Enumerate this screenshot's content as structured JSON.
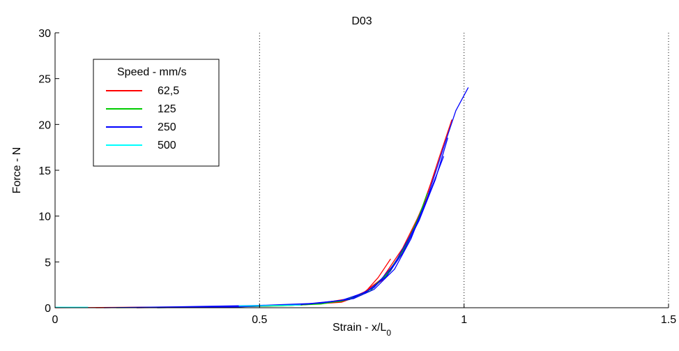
{
  "chart_data": {
    "type": "line",
    "title": "D03",
    "xlabel_main": "Strain - x/L",
    "xlabel_sub": "0",
    "ylabel": "Force - N",
    "xlim": [
      0,
      1.5
    ],
    "ylim": [
      0,
      30
    ],
    "xticks": [
      0,
      0.5,
      1,
      1.5
    ],
    "xtick_labels": [
      "0",
      "0.5",
      "1",
      "1.5"
    ],
    "yticks": [
      0,
      5,
      10,
      15,
      20,
      25,
      30
    ],
    "ytick_labels": [
      "0",
      "5",
      "10",
      "15",
      "20",
      "25",
      "30"
    ],
    "vertical_reference_lines": [
      0.5,
      1,
      1.5
    ],
    "grid": "vertical dotted lines",
    "legend": {
      "title": "Speed - mm/s",
      "placement": "top-left"
    },
    "series": [
      {
        "name": "62,5",
        "color": "#ff0000",
        "runs": [
          [
            [
              0,
              0
            ],
            [
              0.2,
              0.05
            ],
            [
              0.4,
              0.1
            ],
            [
              0.55,
              0.25
            ],
            [
              0.65,
              0.5
            ],
            [
              0.72,
              1.0
            ],
            [
              0.76,
              1.8
            ],
            [
              0.79,
              3.3
            ],
            [
              0.82,
              5.3
            ]
          ],
          [
            [
              0.1,
              0
            ],
            [
              0.3,
              0.05
            ],
            [
              0.5,
              0.15
            ],
            [
              0.6,
              0.3
            ],
            [
              0.7,
              0.7
            ],
            [
              0.75,
              1.5
            ],
            [
              0.8,
              3.2
            ],
            [
              0.85,
              6.5
            ],
            [
              0.9,
              11.0
            ],
            [
              0.94,
              16.5
            ],
            [
              0.97,
              20.5
            ]
          ],
          [
            [
              0.2,
              0
            ],
            [
              0.4,
              0.05
            ],
            [
              0.6,
              0.3
            ],
            [
              0.7,
              0.6
            ],
            [
              0.75,
              1.4
            ],
            [
              0.8,
              3.0
            ],
            [
              0.85,
              6.0
            ],
            [
              0.9,
              11.2
            ],
            [
              0.93,
              15.0
            ]
          ]
        ]
      },
      {
        "name": "125",
        "color": "#00cc00",
        "runs": [
          [
            [
              0.15,
              0
            ],
            [
              0.35,
              0.05
            ],
            [
              0.55,
              0.2
            ],
            [
              0.65,
              0.4
            ],
            [
              0.72,
              0.9
            ],
            [
              0.77,
              1.8
            ],
            [
              0.82,
              4.0
            ],
            [
              0.86,
              7.0
            ],
            [
              0.89,
              10.0
            ],
            [
              0.91,
              12.5
            ]
          ],
          [
            [
              0.25,
              0
            ],
            [
              0.45,
              0.1
            ],
            [
              0.6,
              0.3
            ],
            [
              0.7,
              0.7
            ],
            [
              0.76,
              1.6
            ],
            [
              0.81,
              3.6
            ],
            [
              0.85,
              6.2
            ],
            [
              0.88,
              9.0
            ],
            [
              0.9,
              11.0
            ]
          ]
        ]
      },
      {
        "name": "250",
        "color": "#0000ff",
        "runs": [
          [
            [
              0.12,
              0
            ],
            [
              0.3,
              0.1
            ],
            [
              0.5,
              0.25
            ],
            [
              0.65,
              0.5
            ],
            [
              0.73,
              1.0
            ],
            [
              0.78,
              2.0
            ],
            [
              0.83,
              4.2
            ],
            [
              0.87,
              7.5
            ],
            [
              0.91,
              12.0
            ],
            [
              0.95,
              17.5
            ],
            [
              0.98,
              21.5
            ],
            [
              1.01,
              24.0
            ]
          ],
          [
            [
              0.2,
              0
            ],
            [
              0.4,
              0.1
            ],
            [
              0.6,
              0.35
            ],
            [
              0.7,
              0.8
            ],
            [
              0.76,
              1.7
            ],
            [
              0.81,
              3.4
            ],
            [
              0.85,
              6.0
            ],
            [
              0.89,
              9.5
            ],
            [
              0.93,
              14.0
            ],
            [
              0.96,
              18.5
            ]
          ],
          [
            [
              0.25,
              0
            ],
            [
              0.45,
              0.1
            ],
            [
              0.62,
              0.4
            ],
            [
              0.72,
              0.9
            ],
            [
              0.78,
              2.2
            ],
            [
              0.83,
              4.8
            ],
            [
              0.88,
              8.8
            ],
            [
              0.92,
              13.0
            ],
            [
              0.95,
              16.5
            ]
          ]
        ]
      },
      {
        "name": "500",
        "color": "#00ffff",
        "runs": [
          [
            [
              0,
              0.05
            ],
            [
              0.05,
              0.05
            ],
            [
              0.08,
              0.05
            ]
          ],
          [
            [
              0.45,
              0.2
            ],
            [
              0.55,
              0.25
            ],
            [
              0.6,
              0.3
            ]
          ]
        ]
      }
    ]
  }
}
